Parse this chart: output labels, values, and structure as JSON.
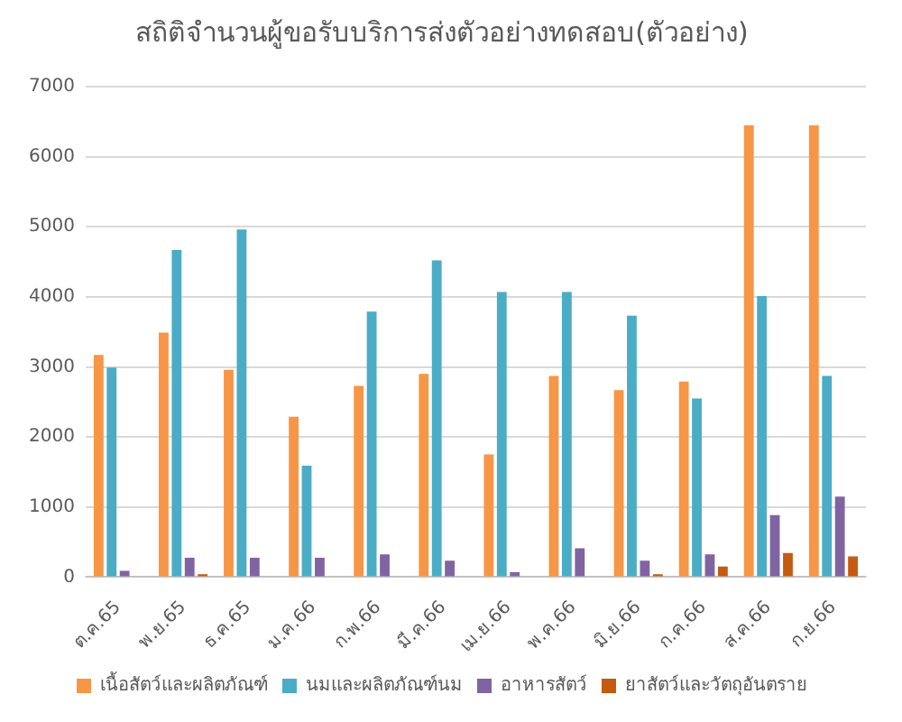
{
  "chart_data": {
    "type": "bar",
    "title": "สถิติจำนวนผู้ขอรับบริการส่งตัวอย่างทดสอบ(ตัวอย่าง)",
    "categories": [
      "ต.ค.65",
      "พ.ย.65",
      "ธ.ค.65",
      "ม.ค.66",
      "ก.พ.66",
      "มี.ค.66",
      "เม.ย.66",
      "พ.ค.66",
      "มิ.ย.66",
      "ก.ค.66",
      "ส.ค.66",
      "ก.ย.66"
    ],
    "series": [
      {
        "name": "เนื้อสัตว์และผลิตภัณฑ์",
        "color": "#f79646",
        "values": [
          3170,
          3490,
          2960,
          2290,
          2730,
          2900,
          1750,
          2870,
          2670,
          2790,
          6450,
          6450
        ]
      },
      {
        "name": "นมและผลิตภัณฑ์นม",
        "color": "#4bacc6",
        "values": [
          2990,
          4670,
          4960,
          1590,
          3790,
          4520,
          4070,
          4070,
          3730,
          2550,
          4010,
          2870
        ]
      },
      {
        "name": "อาหารสัตว์",
        "color": "#8064a2",
        "values": [
          90,
          275,
          275,
          275,
          325,
          235,
          70,
          410,
          235,
          325,
          885,
          1150
        ]
      },
      {
        "name": "ยาสัตว์และวัตถุอันตราย",
        "color": "#c55a11",
        "values": [
          null,
          40,
          null,
          null,
          null,
          null,
          null,
          null,
          40,
          150,
          345,
          295
        ]
      }
    ],
    "ylim": [
      0,
      7000
    ],
    "yticks": [
      0,
      1000,
      2000,
      3000,
      4000,
      5000,
      6000,
      7000
    ],
    "grid": "y",
    "legend": "bottom"
  }
}
